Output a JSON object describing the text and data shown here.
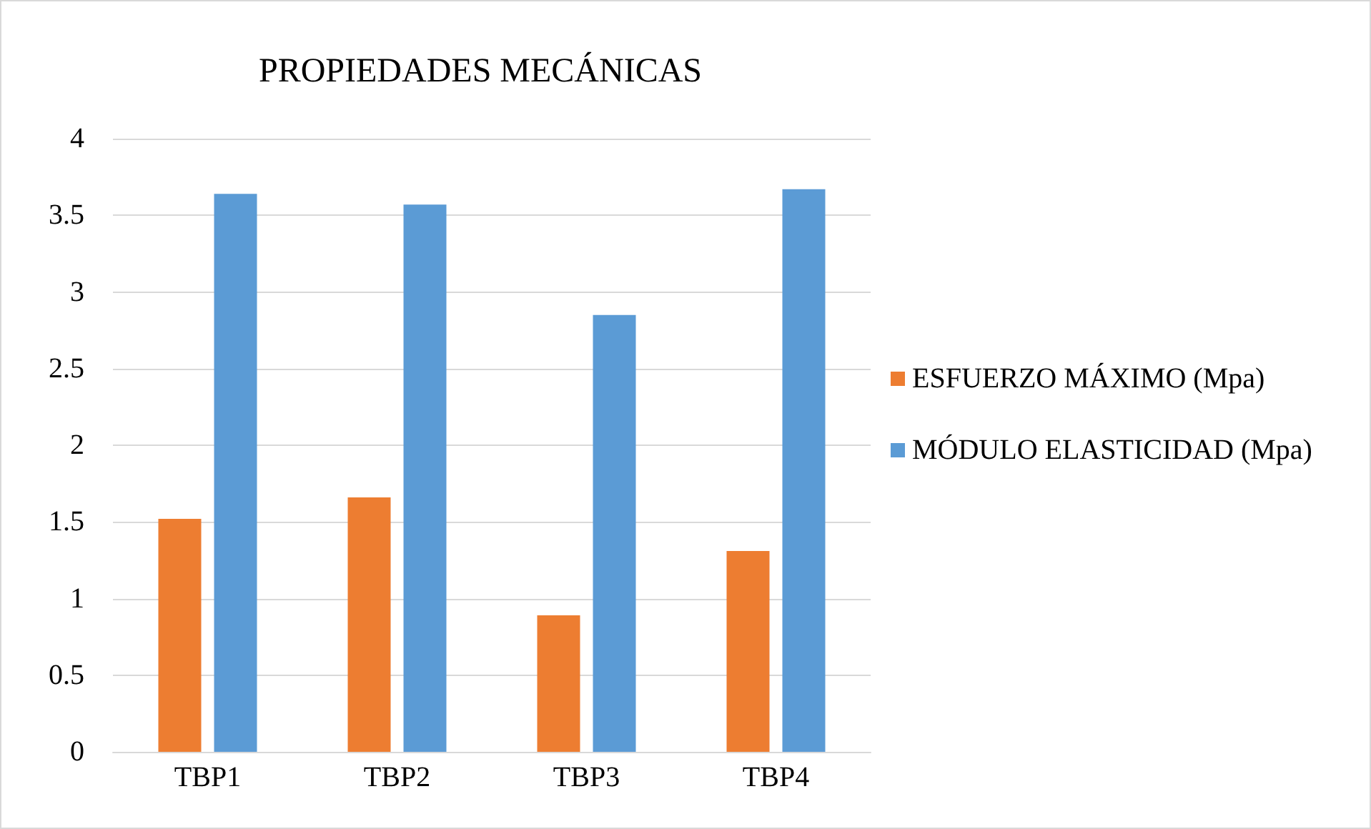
{
  "chart_data": {
    "type": "bar",
    "title": "PROPIEDADES MECÁNICAS",
    "categories": [
      "TBP1",
      "TBP2",
      "TBP3",
      "TBP4"
    ],
    "series": [
      {
        "name": "ESFUERZO MÁXIMO (Mpa)",
        "color": "#ed7d31",
        "values": [
          1.52,
          1.66,
          0.89,
          1.31
        ]
      },
      {
        "name": "MÓDULO ELASTICIDAD (Mpa)",
        "color": "#5b9bd5",
        "values": [
          3.64,
          3.57,
          2.85,
          3.67
        ]
      }
    ],
    "ylim": [
      0,
      4
    ],
    "yticks": [
      0,
      0.5,
      1,
      1.5,
      2,
      2.5,
      3,
      3.5,
      4
    ],
    "grid": "y",
    "legend": "right"
  }
}
